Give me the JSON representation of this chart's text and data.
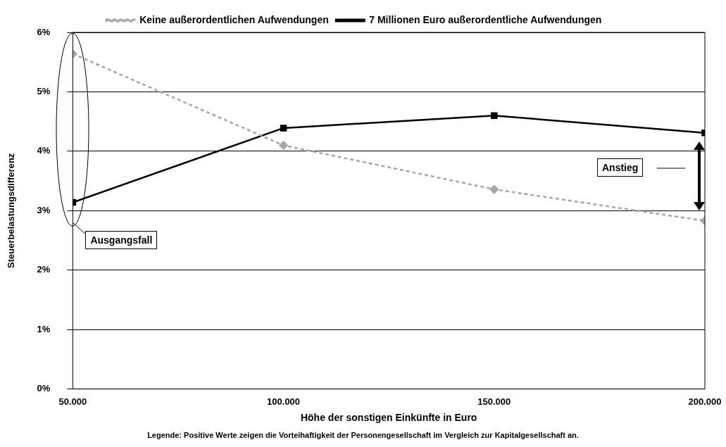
{
  "chart_data": {
    "type": "line",
    "xlabel": "Höhe der sonstigen Einkünfte in Euro",
    "ylabel": "Steuerbelastungsdifferenz",
    "x": [
      50000,
      100000,
      150000,
      200000
    ],
    "series": [
      {
        "name": "Keine außerordentlichen Aufwendungen",
        "color": "#a6a6a6",
        "values": [
          5.64,
          4.1,
          3.36,
          2.83
        ],
        "marker": "diamond",
        "line_style": "dashed"
      },
      {
        "name": "7 Millionen Euro außerordentliche Aufwendungen",
        "color": "#000000",
        "values": [
          3.14,
          4.39,
          4.6,
          4.31
        ],
        "marker": "square",
        "line_style": "solid"
      }
    ],
    "xlim": [
      50000,
      200000
    ],
    "xticks": [
      {
        "value": 50000,
        "label": "50.000"
      },
      {
        "value": 100000,
        "label": "100.000"
      },
      {
        "value": 150000,
        "label": "150.000"
      },
      {
        "value": 200000,
        "label": "200.000"
      }
    ],
    "ylim": [
      0,
      6
    ],
    "yticks": [
      {
        "value": 0,
        "label": "0%"
      },
      {
        "value": 1,
        "label": "1%"
      },
      {
        "value": 2,
        "label": "2%"
      },
      {
        "value": 3,
        "label": "3%"
      },
      {
        "value": 4,
        "label": "4%"
      },
      {
        "value": 5,
        "label": "5%"
      },
      {
        "value": 6,
        "label": "6%"
      }
    ],
    "grid": "y",
    "legend": "top",
    "annotations": [
      "Ausgangsfall",
      "Anstieg",
      "Legende: Positive Werte zeigen die Vorteihaftigkeit der Personengesellschaft im Vergleich zur Kapitalgesellschaft an."
    ]
  }
}
